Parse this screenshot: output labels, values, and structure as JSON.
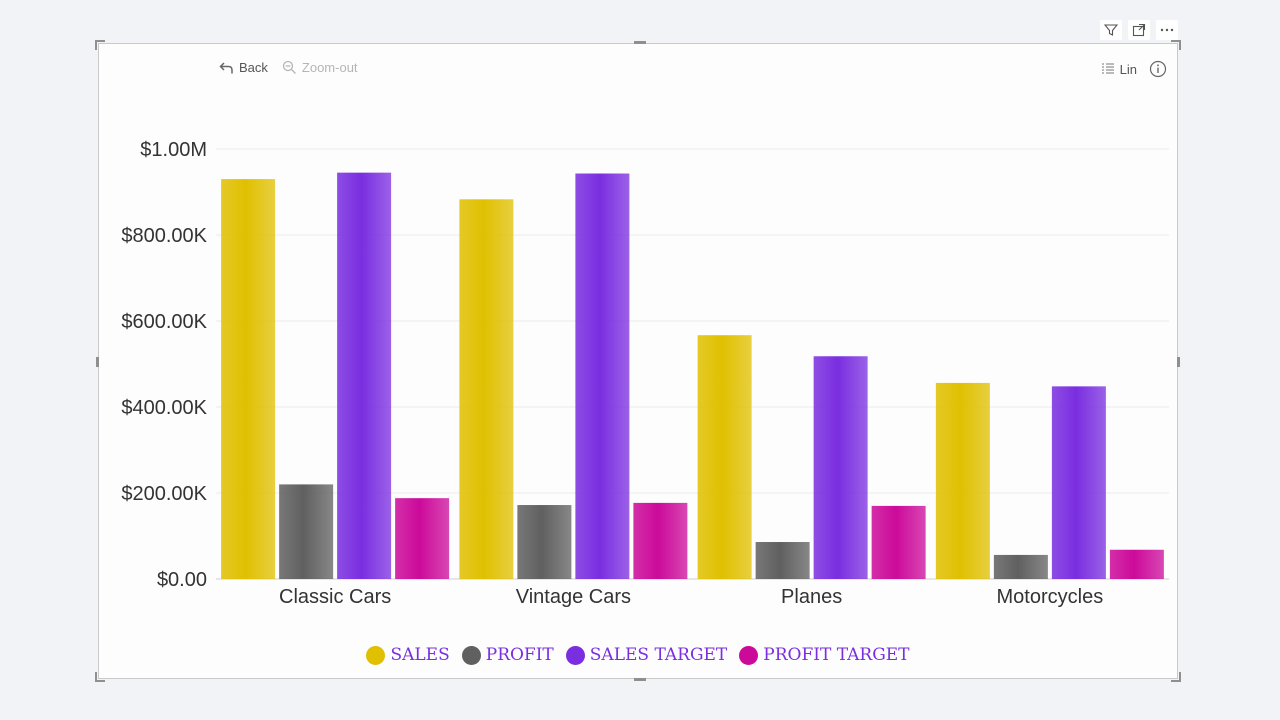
{
  "header_icons": [
    {
      "name": "filter-icon",
      "glyph": "⛉"
    },
    {
      "name": "focus-mode-icon",
      "glyph": "⤢"
    },
    {
      "name": "more-options-icon",
      "glyph": "⋯"
    }
  ],
  "toolbar": {
    "back_label": "Back",
    "zoom_out_label": "Zoom-out",
    "scale_label": "Lin"
  },
  "colors": {
    "sales": "#e0c000",
    "profit": "#606060",
    "sales_target": "#7a2ee0",
    "profit_target": "#cc0a9a",
    "legend_text": "#7a2ee0",
    "gridline": "#ececec",
    "axis_text": "#333333"
  },
  "chart_data": {
    "type": "bar",
    "categories": [
      "Classic Cars",
      "Vintage Cars",
      "Planes",
      "Motorcycles"
    ],
    "series": [
      {
        "name": "SALES",
        "color_key": "sales",
        "values": [
          930000,
          883000,
          567000,
          456000
        ]
      },
      {
        "name": "PROFIT",
        "color_key": "profit",
        "values": [
          220000,
          172000,
          86000,
          56000
        ]
      },
      {
        "name": "SALES TARGET",
        "color_key": "sales_target",
        "values": [
          945000,
          943000,
          518000,
          448000
        ]
      },
      {
        "name": "PROFIT TARGET",
        "color_key": "profit_target",
        "values": [
          188000,
          177000,
          170000,
          68000
        ]
      }
    ],
    "yticks": [
      0,
      200000,
      400000,
      600000,
      800000,
      1000000
    ],
    "ytick_labels": [
      "$0.00",
      "$200.00K",
      "$400.00K",
      "$600.00K",
      "$800.00K",
      "$1.00M"
    ],
    "ylim": [
      0,
      1000000
    ],
    "grid": true,
    "legend_position": "bottom-center",
    "xlabel": "",
    "ylabel": ""
  }
}
